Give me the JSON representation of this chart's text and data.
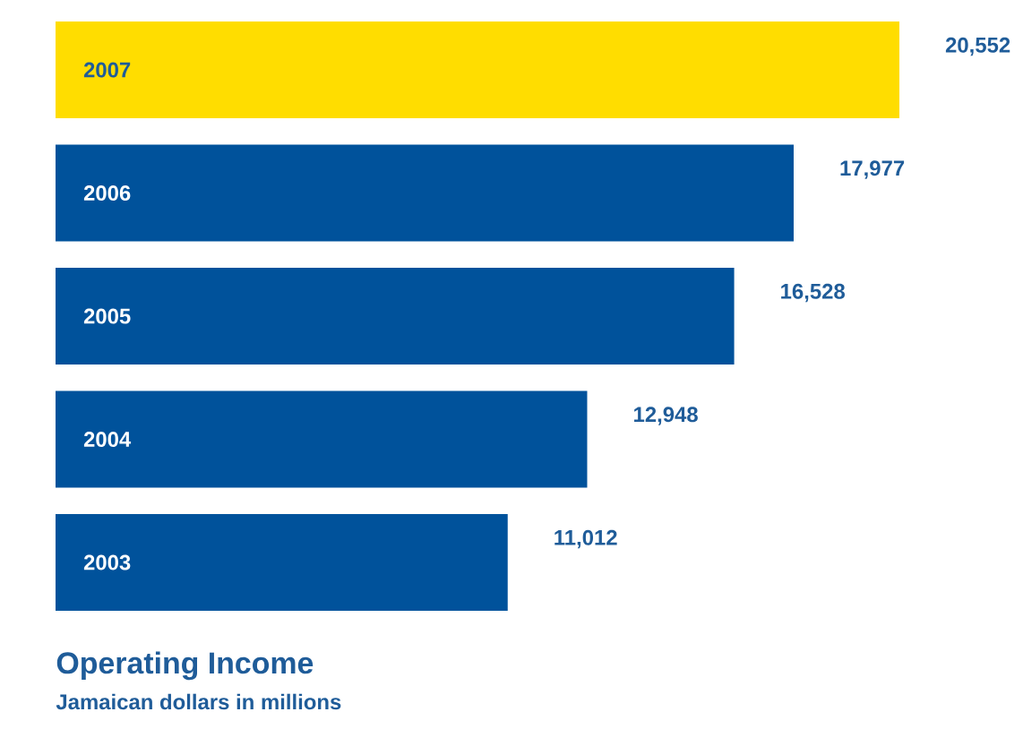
{
  "chart_data": {
    "type": "bar",
    "orientation": "horizontal",
    "title": "Operating Income",
    "subtitle": "Jamaican dollars in millions",
    "categories": [
      "2007",
      "2006",
      "2005",
      "2004",
      "2003"
    ],
    "values": [
      20552,
      17977,
      16528,
      12948,
      11012
    ],
    "value_labels": [
      "20,552",
      "17,977",
      "16,528",
      "12,948",
      "11,012"
    ],
    "colors": [
      "#ffdd00",
      "#00529b",
      "#00529b",
      "#00529b",
      "#00529b"
    ]
  }
}
